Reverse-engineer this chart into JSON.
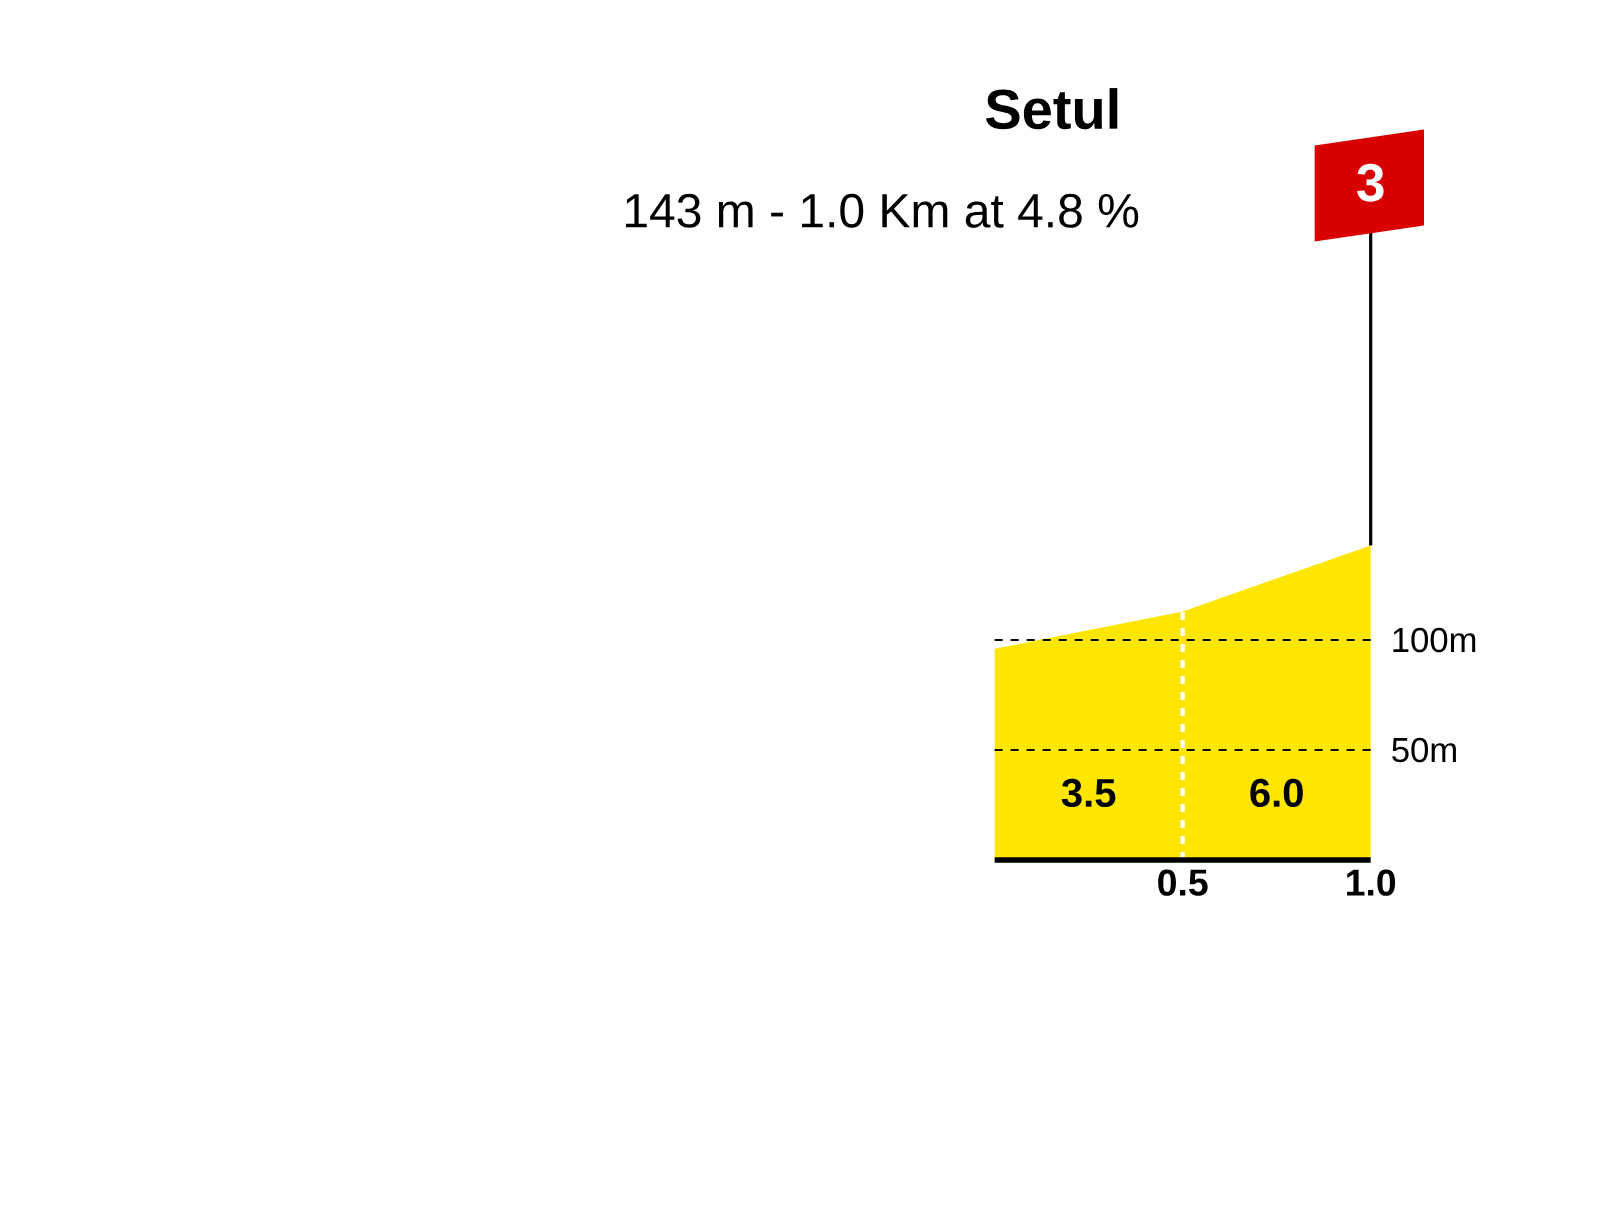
{
  "chart_data": {
    "type": "area",
    "title": "Setul",
    "subtitle": "143 m - 1.0 Km at 4.8 %",
    "series": [
      {
        "color": "#ffe600",
        "x": [
          0,
          0.5,
          1.0
        ],
        "values": [
          96,
          113,
          143
        ]
      }
    ],
    "xlim": [
      0,
      1.0
    ],
    "xticks": [
      {
        "value": 0.5,
        "label": "0.5"
      },
      {
        "value": 1.0,
        "label": "1.0"
      }
    ],
    "ylim": [
      0,
      160
    ],
    "yticks": [
      {
        "value": 50,
        "label": "50m"
      },
      {
        "value": 100,
        "label": "100m"
      }
    ],
    "grid": "y",
    "ref_lines": [
      {
        "axis": "x",
        "value": 0.5,
        "color": "#ffffff",
        "line_style": "dashed"
      }
    ],
    "annotations": [
      "3.5",
      "6.0",
      "3"
    ]
  }
}
